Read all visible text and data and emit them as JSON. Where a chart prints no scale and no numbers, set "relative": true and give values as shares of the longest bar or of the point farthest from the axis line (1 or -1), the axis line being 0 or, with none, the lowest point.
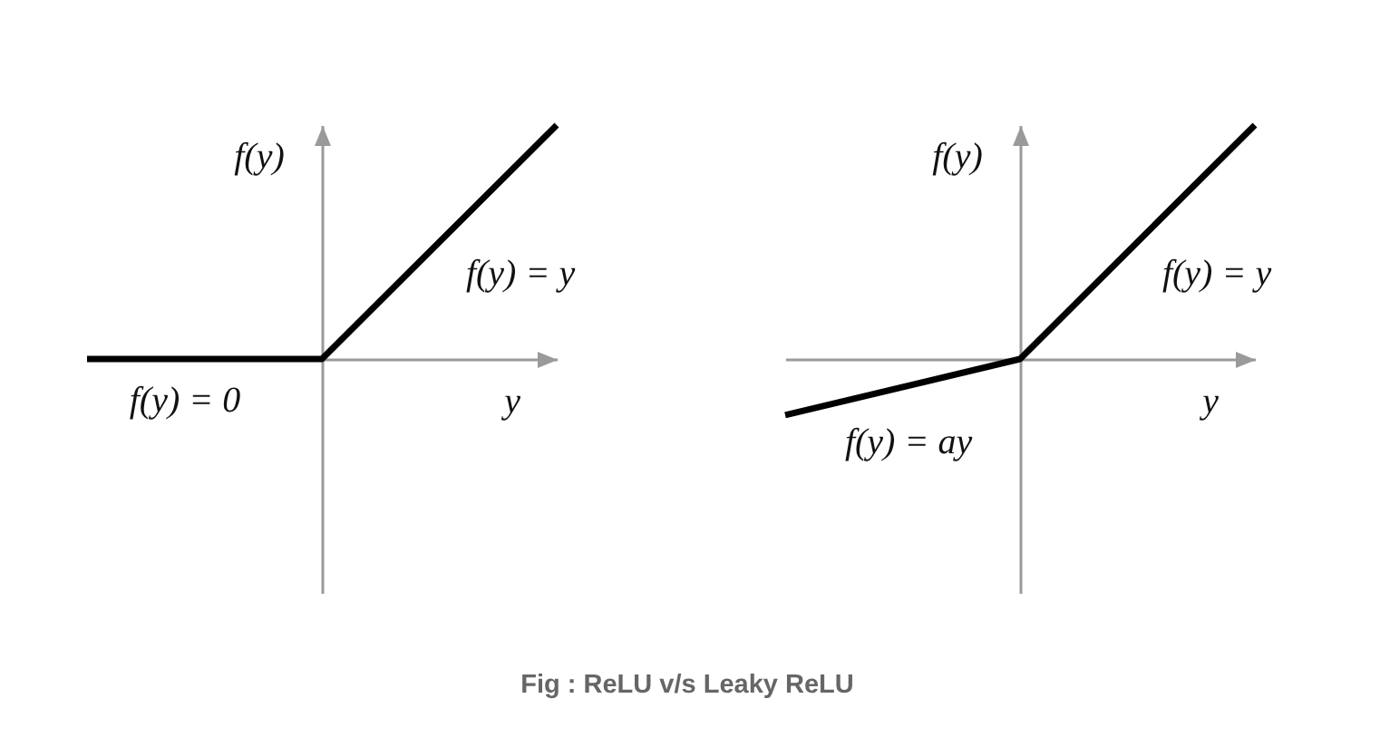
{
  "chart_data": [
    {
      "type": "line",
      "xlabel": "y",
      "ylabel": "f(y)",
      "categories": [
        null,
        null,
        null
      ],
      "relative": true,
      "series": [
        {
          "color": "#000000",
          "values": [
            0,
            0,
            1
          ]
        }
      ],
      "annotations": [
        "f(y) = y",
        "f(y) = 0"
      ]
    },
    {
      "type": "line",
      "xlabel": "y",
      "ylabel": "f(y)",
      "categories": [
        null,
        null,
        null
      ],
      "relative": true,
      "series": [
        {
          "color": "#000000",
          "values": [
            -0.24,
            0,
            1
          ]
        }
      ],
      "annotations": [
        "f(y) = y",
        "f(y) = ay",
        "Fig : ReLU v/s Leaky ReLU"
      ]
    }
  ]
}
